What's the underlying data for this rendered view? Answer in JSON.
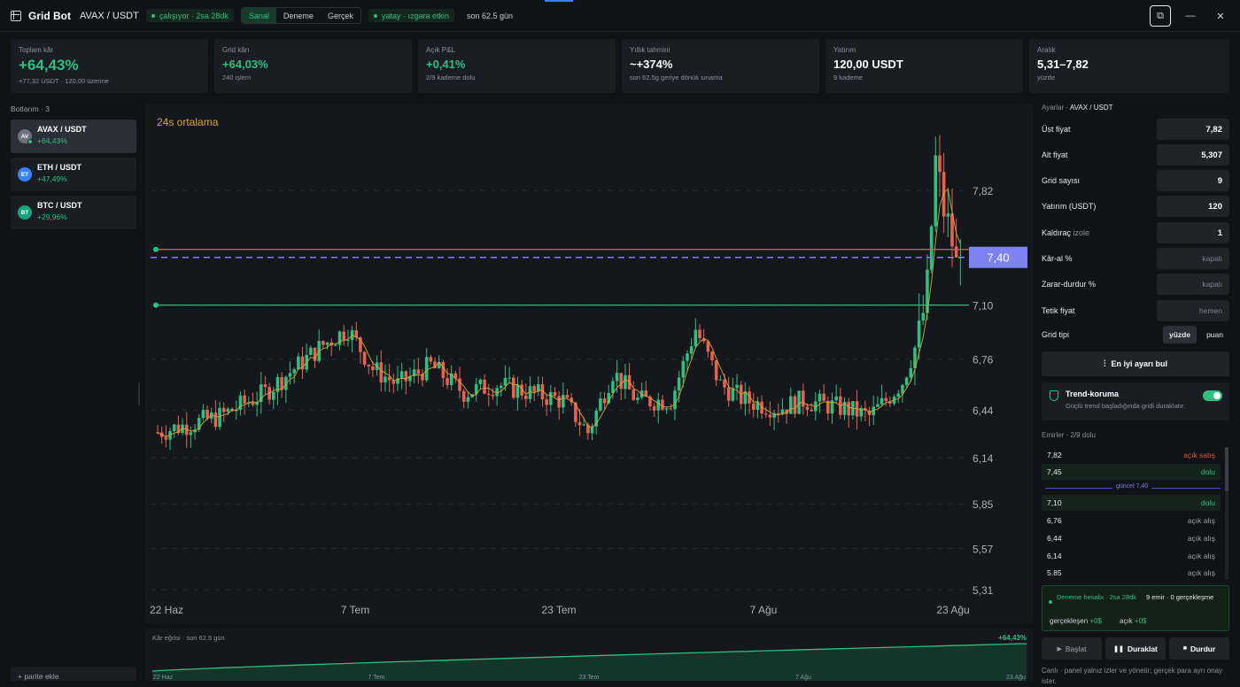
{
  "header": {
    "app_title": "Grid Bot",
    "pair": "AVAX / USDT",
    "status": "çalışıyor · 2sa 28dk",
    "modes": [
      "Sanal",
      "Deneme",
      "Gerçek"
    ],
    "active_mode": "Sanal",
    "market_state": "yatay · ızgara etkin",
    "period": "son 62.5 gün"
  },
  "stats": [
    {
      "label": "Toplam kâr",
      "value": "+64,43%",
      "sub": "+77,32 USDT · 120,00 üzerine"
    },
    {
      "label": "Grid kârı",
      "value": "+64,03%",
      "sub": "240 işlem"
    },
    {
      "label": "Açık P&L",
      "value": "+0,41%",
      "sub": "2/9 kademe dolu"
    },
    {
      "label": "Yıllık tahmini",
      "value": "~+374%",
      "sub": "son 62.5g geriye dönük sınama"
    },
    {
      "label": "Yatırım",
      "value": "120,00 USDT",
      "sub": "9 kademe"
    },
    {
      "label": "Aralık",
      "value": "5,31–7,82",
      "sub": "yüzde"
    }
  ],
  "sidebar": {
    "title": "Botlarım · 3",
    "bots": [
      {
        "initials": "AV",
        "name": "AVAX / USDT",
        "pct": "+64,43%",
        "color": "#6b7280"
      },
      {
        "initials": "ET",
        "name": "ETH / USDT",
        "pct": "+47,49%",
        "color": "#3b82f6"
      },
      {
        "initials": "BT",
        "name": "BTC / USDT",
        "pct": "+29,96%",
        "color": "#14a37f"
      }
    ],
    "add_label": "+ parite ekle"
  },
  "chart_data": {
    "type": "candlestick",
    "indicator_label": "24s ortalama",
    "y_ticks": [
      "7,82",
      "7,10",
      "6,76",
      "6,44",
      "6,14",
      "5,85",
      "5,57",
      "5,31"
    ],
    "x_ticks": [
      "22 Haz",
      "7 Tem",
      "23 Tem",
      "7 Ağu",
      "23 Ağu"
    ],
    "current_price": "7,40",
    "ylim": [
      5.25,
      8.3
    ],
    "lines": {
      "upper": 7.45,
      "current": 7.4,
      "lower": 7.1
    },
    "colors": {
      "up": "#2fbf7f",
      "down": "#e5634f",
      "current": "#7c82f0",
      "avg": "#d9a53c"
    }
  },
  "equity": {
    "title": "Kâr eğrisi · son 62.5 gün",
    "pct": "+64,43%",
    "x_ticks": [
      "22 Haz",
      "7 Tem",
      "23 Tem",
      "7 Ağu",
      "23 Ağu"
    ]
  },
  "settings": {
    "header_label": "Ayarlar ·",
    "header_pair": "AVAX / USDT",
    "rows": [
      {
        "label": "Üst fiyat",
        "value": "7,82"
      },
      {
        "label": "Alt fiyat",
        "value": "5,307"
      },
      {
        "label": "Grid sayısı",
        "value": "9"
      },
      {
        "label": "Yatırım (USDT)",
        "value": "120"
      },
      {
        "label": "Kaldıraç",
        "label_muted": "izole",
        "value": "1"
      },
      {
        "label": "Kâr-al %",
        "placeholder": "kapalı"
      },
      {
        "label": "Zarar-durdur %",
        "placeholder": "kapalı"
      },
      {
        "label": "Tetik fiyat",
        "placeholder": "hemen"
      }
    ],
    "grid_type_label": "Grid tipi",
    "grid_type_options": [
      "yüzde",
      "puan"
    ],
    "best_button": "En iyi ayarı bul",
    "trend_title": "Trend-koruma",
    "trend_sub": "Güçlü trend başladığında gridi duraklatır.",
    "orders_title": "Emirler · 2/9 dolu",
    "orders": [
      {
        "price": "7,82",
        "status": "açık satış",
        "kind": "sell"
      },
      {
        "price": "7,45",
        "status": "dolu",
        "kind": "done"
      },
      {
        "price": "7,10",
        "status": "dolu",
        "kind": "done"
      },
      {
        "price": "6,76",
        "status": "açık alış",
        "kind": "buy"
      },
      {
        "price": "6,44",
        "status": "açık alış",
        "kind": "buy"
      },
      {
        "price": "6,14",
        "status": "açık alış",
        "kind": "buy"
      },
      {
        "price": "5.85",
        "status": "açık alış",
        "kind": "buy"
      }
    ],
    "current_marker": "güncel 7,40",
    "sandbox_a": "Deneme hesabı · 2sa 28dk",
    "sandbox_b": "9 emir · 0 gerçekleşme",
    "sandbox_c_label": "gerçekleşen",
    "sandbox_c_val": "+0$",
    "sandbox_d_label": "açık",
    "sandbox_d_val": "+0$",
    "start": "Başlat",
    "pause": "Duraklat",
    "stop": "Durdur",
    "footnote": "Canlı · panel yalnız izler ve yönetir; gerçek para ayrı onay ister."
  }
}
